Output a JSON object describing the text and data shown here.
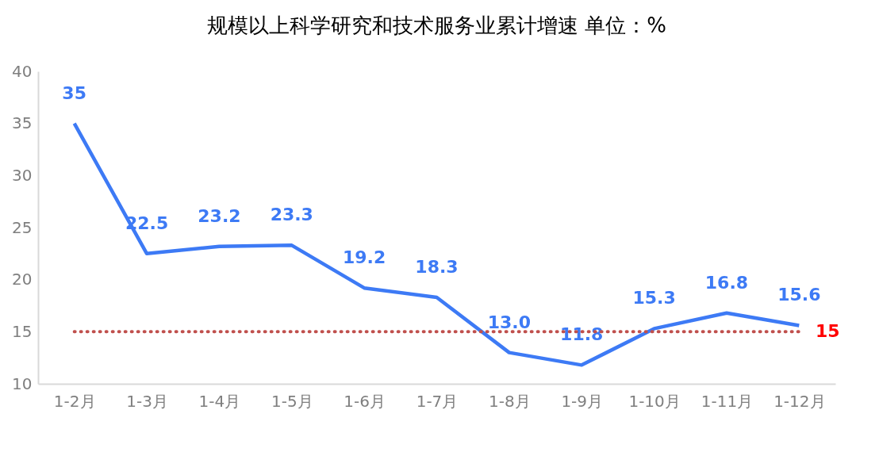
{
  "chart_data": {
    "type": "line",
    "title": "规模以上科学研究和技术服务业累计增速   单位：%",
    "categories": [
      "1-2月",
      "1-3月",
      "1-4月",
      "1-5月",
      "1-6月",
      "1-7月",
      "1-8月",
      "1-9月",
      "1-10月",
      "1-11月",
      "1-12月"
    ],
    "series": [
      {
        "color": "#3d7af5",
        "values": [
          35,
          22.5,
          23.2,
          23.3,
          19.2,
          18.3,
          13.0,
          11.8,
          15.3,
          16.8,
          15.6
        ],
        "value_labels": [
          "35",
          "22.5",
          "23.2",
          "23.3",
          "19.2",
          "18.3",
          "13.0",
          "11.8",
          "15.3",
          "16.8",
          "15.6"
        ]
      }
    ],
    "ylim": [
      10,
      40
    ],
    "yticks": [
      10,
      15,
      20,
      25,
      30,
      35,
      40
    ],
    "grid": false,
    "marker": "none",
    "line_style": "solid",
    "ref_lines": [
      {
        "axis": "y",
        "value": 15,
        "label": "15",
        "color": "#c0504d",
        "line_style": "dotted"
      }
    ]
  }
}
